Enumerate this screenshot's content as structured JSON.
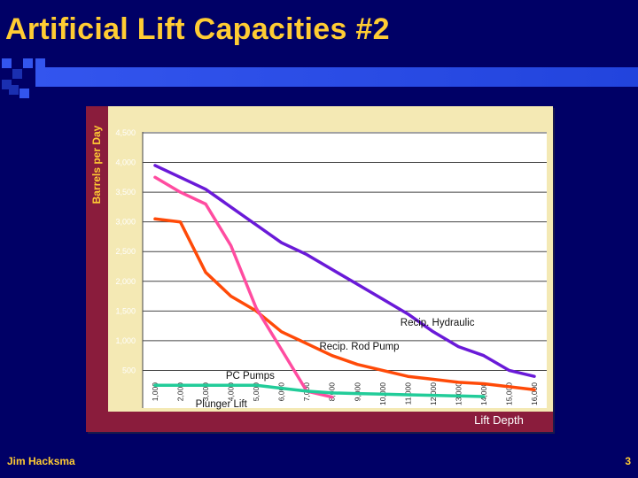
{
  "slide": {
    "title": "Artificial Lift Capacities #2",
    "author": "Jim Hacksma",
    "page_number": "3"
  },
  "colors": {
    "background": "#000066",
    "title": "#ffcc33",
    "accent_bar": "#3355ee",
    "plot_bg": "#ffffff",
    "panel_bg": "#f4e9b4",
    "axis_strip": "#8a1c3c"
  },
  "chart_data": {
    "type": "line",
    "title": "",
    "xlabel": "Lift Depth",
    "ylabel": "Barrels per Day",
    "ylim": [
      0,
      4500
    ],
    "xlim": [
      1000,
      16000
    ],
    "grid": true,
    "x_ticks": [
      "1,000",
      "2,000",
      "3,000",
      "4,000",
      "5,000",
      "6,000",
      "7,000",
      "8,000",
      "9,000",
      "10,000",
      "11,000",
      "12,000",
      "13,000",
      "14,000",
      "15,000",
      "16,000"
    ],
    "x_tick_values": [
      1000,
      2000,
      3000,
      4000,
      5000,
      6000,
      7000,
      8000,
      9000,
      10000,
      11000,
      12000,
      13000,
      14000,
      15000,
      16000
    ],
    "y_ticks": [
      "500",
      "1,000",
      "1,500",
      "2,000",
      "2,500",
      "3,000",
      "3,500",
      "4,000",
      "4,500"
    ],
    "y_tick_values": [
      500,
      1000,
      1500,
      2000,
      2500,
      3000,
      3500,
      4000,
      4500
    ],
    "series": [
      {
        "name": "Recip. Hydraulic",
        "color": "#6a1ad8",
        "x": [
          1000,
          2000,
          3000,
          4000,
          5000,
          6000,
          7000,
          8000,
          9000,
          10000,
          11000,
          12000,
          13000,
          14000,
          15000,
          16000
        ],
        "y": [
          3950,
          3750,
          3550,
          3250,
          2950,
          2650,
          2450,
          2200,
          1950,
          1700,
          1450,
          1150,
          900,
          750,
          500,
          400
        ]
      },
      {
        "name": "Recip. Rod Pump",
        "color": "#ff4a08",
        "x": [
          1000,
          2000,
          3000,
          4000,
          5000,
          6000,
          7000,
          8000,
          9000,
          10000,
          11000,
          12000,
          13000,
          14000,
          15000,
          16000
        ],
        "y": [
          3050,
          3000,
          2150,
          1750,
          1500,
          1150,
          950,
          750,
          600,
          500,
          400,
          350,
          300,
          275,
          225,
          175
        ]
      },
      {
        "name": "PC Pumps",
        "color": "#ff4ca0",
        "x": [
          1000,
          2000,
          3000,
          4000,
          5000,
          6000,
          7000,
          8000
        ],
        "y": [
          3750,
          3500,
          3300,
          2600,
          1550,
          850,
          150,
          50
        ]
      },
      {
        "name": "Plunger Lift",
        "color": "#22cc99",
        "x": [
          1000,
          2000,
          3000,
          4000,
          5000,
          6000,
          7000,
          8000,
          9000,
          10000,
          11000,
          12000,
          13000,
          14000
        ],
        "y": [
          250,
          250,
          250,
          250,
          250,
          200,
          150,
          120,
          110,
          100,
          90,
          80,
          70,
          60
        ]
      }
    ],
    "annotations": [
      {
        "text": "Recip. Hydraulic",
        "x": 10700,
        "y": 1250
      },
      {
        "text": "Recip. Rod Pump",
        "x": 7500,
        "y": 850
      },
      {
        "text": "PC Pumps",
        "x": 3800,
        "y": 360
      },
      {
        "text": "Plunger Lift",
        "x": 2600,
        "y": -120
      }
    ]
  }
}
